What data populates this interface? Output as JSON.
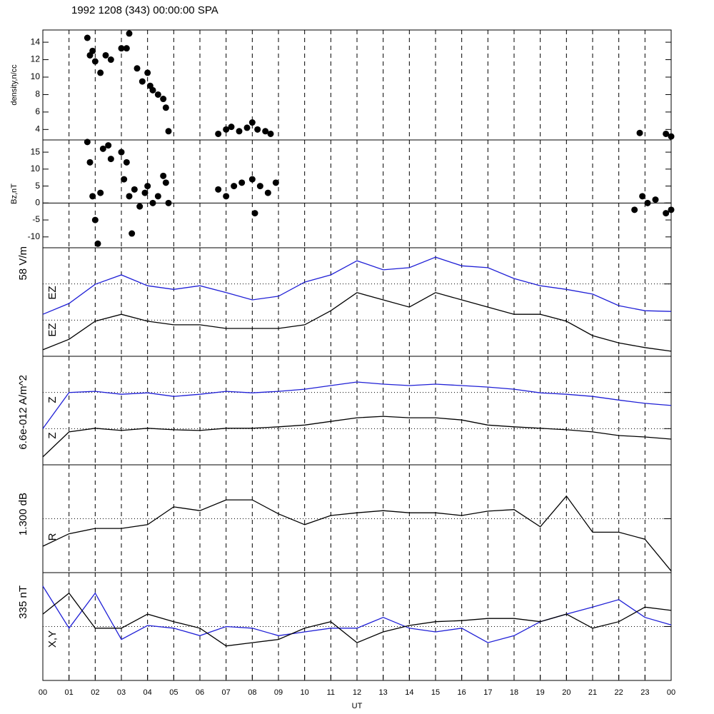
{
  "chart_data": [
    {
      "type": "scatter",
      "title": "1992 1208 (343) 00:00:00 SPA",
      "ylabel": "density,n/cc",
      "color": "#000000",
      "xlim": [
        0,
        24
      ],
      "ylim": [
        2.8,
        15.4
      ],
      "yticks": [
        4,
        6,
        8,
        10,
        12,
        14
      ],
      "x": [
        1.7,
        1.8,
        1.9,
        2,
        2.2,
        2.4,
        2.6,
        3,
        3.2,
        3.3,
        3.6,
        3.8,
        4,
        4.1,
        4.2,
        4.4,
        4.6,
        4.7,
        4.8,
        6.7,
        7,
        7.2,
        7.5,
        7.8,
        8,
        8.2,
        8.5,
        8.7,
        22.8,
        23.8,
        24
      ],
      "values": [
        14.5,
        12.5,
        13,
        11.8,
        10.5,
        12.5,
        12,
        13.3,
        13.3,
        15,
        11,
        9.5,
        10.5,
        9,
        8.5,
        8,
        7.5,
        6.5,
        3.8,
        3.5,
        4,
        4.3,
        3.8,
        4.2,
        4.8,
        4,
        3.8,
        3.5,
        3.6,
        3.5,
        3.2
      ]
    },
    {
      "type": "scatter",
      "ylabel": "Bz,nT",
      "color": "#000000",
      "xlim": [
        0,
        24
      ],
      "ylim": [
        -13.2,
        18.6
      ],
      "yticks": [
        -10,
        -5,
        0,
        5,
        10,
        15
      ],
      "hlines": [
        0
      ],
      "hline_style": "solid",
      "x": [
        1.7,
        1.8,
        1.9,
        2,
        2.1,
        2.2,
        2.3,
        2.5,
        2.6,
        3,
        3.1,
        3.2,
        3.3,
        3.4,
        3.5,
        3.7,
        3.9,
        4,
        4.2,
        4.4,
        4.6,
        4.7,
        4.8,
        6.7,
        7,
        7.3,
        7.6,
        8,
        8.1,
        8.3,
        8.6,
        8.9,
        22.6,
        22.9,
        23.1,
        23.4,
        23.8,
        24
      ],
      "values": [
        18,
        12,
        2,
        -5,
        -12,
        3,
        16,
        17,
        13,
        15,
        7,
        12,
        2,
        -9,
        4,
        -1,
        3,
        5,
        0,
        2,
        8,
        6,
        0,
        4,
        2,
        5,
        6,
        7,
        -3,
        5,
        3,
        6,
        -2,
        2,
        0,
        1,
        -3,
        -2
      ]
    },
    {
      "type": "line",
      "ylabel": "58 V/m",
      "xlim": [
        0,
        24
      ],
      "ylim": [
        0,
        3
      ],
      "hlines": [
        1,
        2
      ],
      "hline_style": "dotted",
      "x": [
        0,
        1,
        2,
        3,
        4,
        5,
        6,
        7,
        8,
        9,
        10,
        11,
        12,
        13,
        14,
        15,
        16,
        17,
        18,
        19,
        20,
        21,
        22,
        23,
        24
      ],
      "series": [
        {
          "name": "EZ",
          "color": "#1f1fd6",
          "values": [
            1.16,
            1.46,
            1.99,
            2.25,
            1.95,
            1.85,
            1.95,
            1.76,
            1.56,
            1.66,
            2.05,
            2.25,
            2.64,
            2.39,
            2.45,
            2.74,
            2.5,
            2.45,
            2.15,
            1.95,
            1.85,
            1.72,
            1.4,
            1.26,
            1.24
          ]
        },
        {
          "name": "EZ",
          "color": "#000000",
          "values": [
            0.18,
            0.47,
            0.97,
            1.16,
            0.97,
            0.87,
            0.87,
            0.77,
            0.77,
            0.77,
            0.87,
            1.26,
            1.76,
            1.56,
            1.36,
            1.76,
            1.56,
            1.36,
            1.16,
            1.16,
            0.97,
            0.57,
            0.37,
            0.24,
            0.14
          ]
        }
      ]
    },
    {
      "type": "line",
      "ylabel": "6.6e-012 A/m^2",
      "xlim": [
        0,
        24
      ],
      "ylim": [
        0,
        3
      ],
      "hlines": [
        1,
        2
      ],
      "hline_style": "dotted",
      "x": [
        0,
        1,
        2,
        3,
        4,
        5,
        6,
        7,
        8,
        9,
        10,
        11,
        12,
        13,
        14,
        15,
        16,
        17,
        18,
        19,
        20,
        21,
        22,
        23,
        24
      ],
      "series": [
        {
          "name": "Z",
          "color": "#1f1fd6",
          "values": [
            1.0,
            2.0,
            2.03,
            1.95,
            1.99,
            1.89,
            1.95,
            2.03,
            1.99,
            2.03,
            2.09,
            2.19,
            2.29,
            2.23,
            2.19,
            2.23,
            2.19,
            2.15,
            2.09,
            1.99,
            1.95,
            1.89,
            1.79,
            1.7,
            1.64
          ]
        },
        {
          "name": "Z",
          "color": "#000000",
          "values": [
            0.22,
            0.91,
            1.01,
            0.95,
            1.01,
            0.97,
            0.95,
            1.01,
            1.01,
            1.05,
            1.1,
            1.2,
            1.3,
            1.34,
            1.3,
            1.3,
            1.24,
            1.1,
            1.05,
            1.01,
            0.97,
            0.91,
            0.81,
            0.77,
            0.71
          ]
        }
      ]
    },
    {
      "type": "line",
      "ylabel": "1.300 dB",
      "xlim": [
        0,
        24
      ],
      "ylim": [
        0,
        2
      ],
      "hlines": [
        1
      ],
      "hline_style": "dotted",
      "x": [
        0,
        1,
        2,
        3,
        4,
        5,
        6,
        7,
        8,
        9,
        10,
        11,
        12,
        13,
        14,
        15,
        16,
        17,
        18,
        19,
        20,
        21,
        22,
        23,
        24
      ],
      "series": [
        {
          "name": "R",
          "color": "#000000",
          "values": [
            0.49,
            0.72,
            0.82,
            0.82,
            0.89,
            1.22,
            1.15,
            1.35,
            1.35,
            1.09,
            0.89,
            1.06,
            1.11,
            1.15,
            1.11,
            1.11,
            1.06,
            1.14,
            1.17,
            0.85,
            1.42,
            0.75,
            0.75,
            0.62,
            0.03
          ]
        }
      ]
    },
    {
      "type": "line",
      "ylabel": "335 nT",
      "label": "X,Y",
      "xlabel": "UT",
      "xlim": [
        0,
        24
      ],
      "ylim": [
        0,
        2
      ],
      "hlines": [
        1
      ],
      "hline_style": "dotted",
      "xticks": [
        {
          "value": 0,
          "label": "00"
        },
        {
          "value": 1,
          "label": "01"
        },
        {
          "value": 2,
          "label": "02"
        },
        {
          "value": 3,
          "label": "03"
        },
        {
          "value": 4,
          "label": "04"
        },
        {
          "value": 5,
          "label": "05"
        },
        {
          "value": 6,
          "label": "06"
        },
        {
          "value": 7,
          "label": "07"
        },
        {
          "value": 8,
          "label": "08"
        },
        {
          "value": 9,
          "label": "09"
        },
        10,
        11,
        12,
        13,
        14,
        15,
        16,
        17,
        18,
        19,
        20,
        21,
        22,
        23,
        {
          "value": 24,
          "label": "00"
        }
      ],
      "x": [
        0,
        1,
        2,
        3,
        4,
        5,
        6,
        7,
        8,
        9,
        10,
        11,
        12,
        13,
        14,
        15,
        16,
        17,
        18,
        19,
        20,
        21,
        22,
        23,
        24
      ],
      "series": [
        {
          "color": "#1f1fd6",
          "values": [
            1.75,
            0.97,
            1.62,
            0.76,
            1.02,
            0.97,
            0.83,
            1.0,
            0.97,
            0.83,
            0.9,
            0.97,
            0.97,
            1.17,
            0.97,
            0.9,
            0.97,
            0.7,
            0.83,
            1.09,
            1.23,
            1.36,
            1.5,
            1.17,
            1.03
          ]
        },
        {
          "color": "#000000",
          "values": [
            1.23,
            1.62,
            0.97,
            0.97,
            1.23,
            1.09,
            0.97,
            0.64,
            0.7,
            0.76,
            0.97,
            1.09,
            0.7,
            0.9,
            1.02,
            1.09,
            1.11,
            1.15,
            1.15,
            1.09,
            1.23,
            0.97,
            1.09,
            1.36,
            1.3
          ]
        }
      ]
    }
  ]
}
